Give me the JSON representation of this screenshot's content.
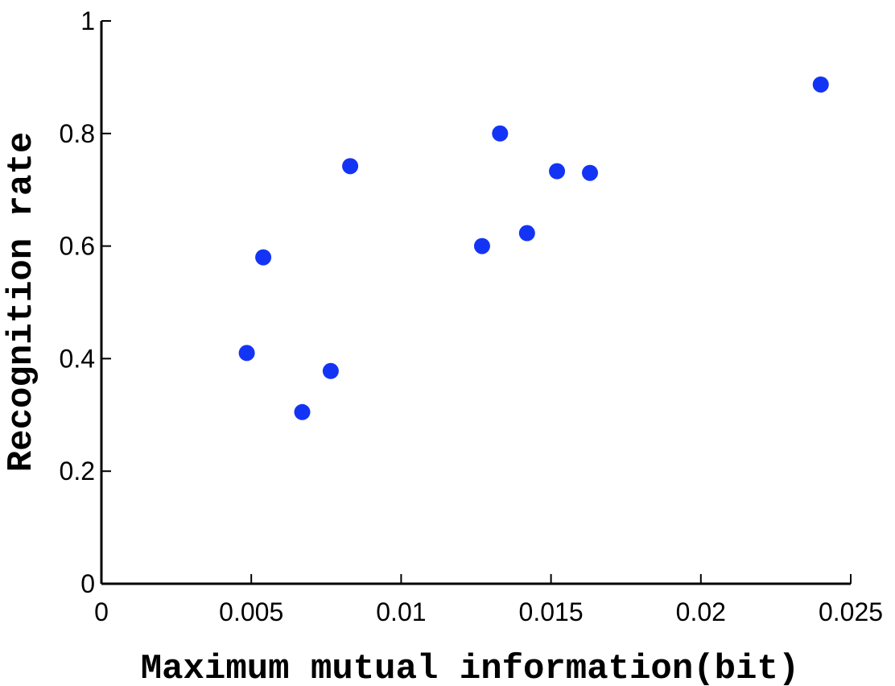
{
  "chart_data": {
    "type": "scatter",
    "title": "",
    "xlabel": "Maximum mutual information(bit)",
    "ylabel": "Recognition rate",
    "xlim": [
      0,
      0.025
    ],
    "ylim": [
      0,
      1
    ],
    "xticks": [
      0,
      0.005,
      0.01,
      0.015,
      0.02,
      0.025
    ],
    "xtick_labels": [
      "0",
      "0.005",
      "0.01",
      "0.015",
      "0.02",
      "0.025"
    ],
    "yticks": [
      0,
      0.2,
      0.4,
      0.6,
      0.8,
      1
    ],
    "ytick_labels": [
      "0",
      "0.2",
      "0.4",
      "0.6",
      "0.8",
      "1"
    ],
    "grid": false,
    "marker_color": "#1434f5",
    "points": [
      {
        "x": 0.00485,
        "y": 0.41
      },
      {
        "x": 0.0054,
        "y": 0.58
      },
      {
        "x": 0.0067,
        "y": 0.305
      },
      {
        "x": 0.00765,
        "y": 0.378
      },
      {
        "x": 0.0083,
        "y": 0.742
      },
      {
        "x": 0.0127,
        "y": 0.6
      },
      {
        "x": 0.0133,
        "y": 0.8
      },
      {
        "x": 0.0142,
        "y": 0.623
      },
      {
        "x": 0.0152,
        "y": 0.733
      },
      {
        "x": 0.0163,
        "y": 0.73
      },
      {
        "x": 0.024,
        "y": 0.887
      }
    ]
  }
}
